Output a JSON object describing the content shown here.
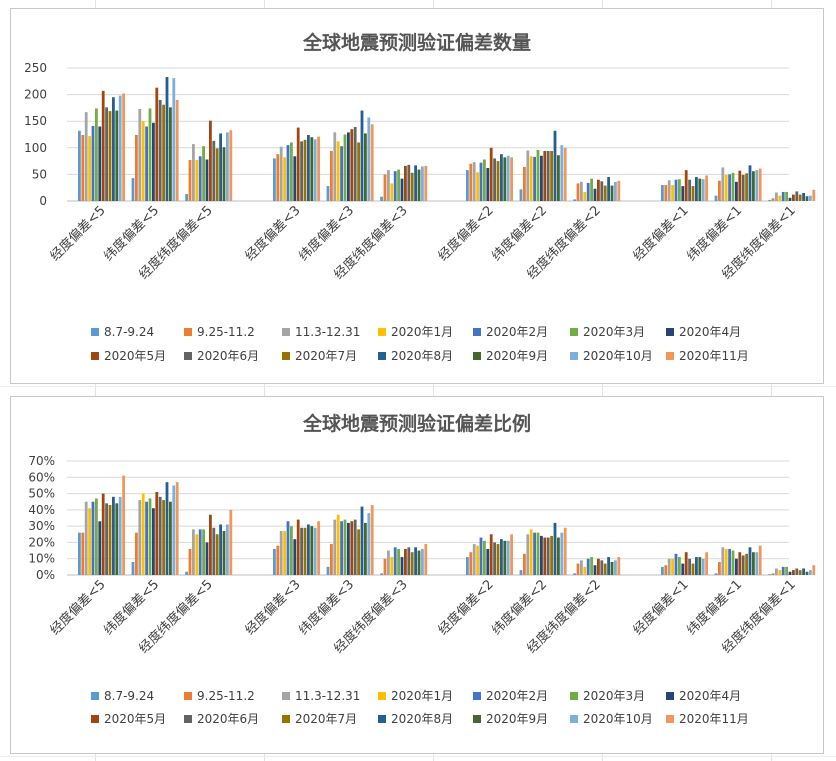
{
  "palette": [
    "#5B9BD5",
    "#ED7D31",
    "#A5A5A5",
    "#FFC000",
    "#4472C4",
    "#70AD47",
    "#264478",
    "#9E480E",
    "#636363",
    "#997300",
    "#255E91",
    "#43682B",
    "#7CAFDD",
    "#F1975A"
  ],
  "chart_data": [
    {
      "type": "bar",
      "title": "全球地震预测验证偏差数量",
      "categories": [
        "经度偏差<5",
        "纬度偏差<5",
        "经度纬度偏差<5",
        "经度偏差<3",
        "纬度偏差<3",
        "经度纬度偏差<3",
        "经度偏差<2",
        "纬度偏差<2",
        "经度纬度偏差<2",
        "经度偏差<1",
        "纬度偏差<1",
        "经度纬度偏差<1"
      ],
      "ylim": [
        0,
        250
      ],
      "yticks": [
        "0",
        "50",
        "100",
        "150",
        "200",
        "250"
      ],
      "yticks_values": [
        0,
        50,
        100,
        150,
        200,
        250
      ],
      "grid": true,
      "legend_position": "bottom",
      "series": [
        {
          "name": "8.7-9.24",
          "values": [
            132,
            43,
            13,
            80,
            28,
            8,
            58,
            22,
            3,
            30,
            10,
            2
          ]
        },
        {
          "name": "9.25-11.2",
          "values": [
            124,
            124,
            77,
            88,
            94,
            50,
            70,
            64,
            33,
            30,
            38,
            5
          ]
        },
        {
          "name": "11.3-12.31",
          "values": [
            167,
            173,
            107,
            102,
            129,
            58,
            73,
            95,
            36,
            39,
            63,
            16
          ]
        },
        {
          "name": "2020年1月",
          "values": [
            122,
            150,
            77,
            82,
            112,
            33,
            54,
            84,
            17,
            30,
            49,
            10
          ]
        },
        {
          "name": "2020年2月",
          "values": [
            141,
            140,
            84,
            105,
            103,
            56,
            72,
            83,
            34,
            40,
            50,
            17
          ]
        },
        {
          "name": "2020年3月",
          "values": [
            174,
            174,
            103,
            110,
            125,
            59,
            78,
            96,
            42,
            41,
            53,
            17
          ]
        },
        {
          "name": "2020年4月",
          "values": [
            140,
            147,
            78,
            84,
            129,
            42,
            62,
            85,
            23,
            28,
            36,
            6
          ]
        },
        {
          "name": "2020年5月",
          "values": [
            207,
            213,
            151,
            138,
            135,
            66,
            100,
            94,
            40,
            58,
            57,
            12
          ]
        },
        {
          "name": "2020年6月",
          "values": [
            176,
            190,
            113,
            112,
            139,
            68,
            80,
            94,
            37,
            40,
            49,
            18
          ]
        },
        {
          "name": "2020年7月",
          "values": [
            169,
            181,
            99,
            115,
            110,
            53,
            75,
            94,
            29,
            28,
            52,
            12
          ]
        },
        {
          "name": "2020年8月",
          "values": [
            195,
            233,
            127,
            124,
            170,
            67,
            88,
            132,
            45,
            45,
            67,
            15
          ]
        },
        {
          "name": "2020年9月",
          "values": [
            170,
            176,
            101,
            120,
            127,
            59,
            82,
            86,
            29,
            42,
            56,
            9
          ]
        },
        {
          "name": "2020年10月",
          "values": [
            198,
            231,
            129,
            116,
            157,
            65,
            85,
            105,
            36,
            41,
            58,
            10
          ]
        },
        {
          "name": "2020年11月",
          "values": [
            202,
            190,
            133,
            121,
            144,
            66,
            82,
            100,
            38,
            48,
            61,
            21
          ]
        }
      ]
    },
    {
      "type": "bar",
      "title": "全球地震预测验证偏差比例",
      "categories": [
        "经度偏差<5",
        "纬度偏差<5",
        "经度纬度偏差<5",
        "经度偏差<3",
        "纬度偏差<3",
        "经度纬度偏差<3",
        "经度偏差<2",
        "纬度偏差<2",
        "经度纬度偏差<2",
        "经度偏差<1",
        "纬度偏差<1",
        "经度纬度偏差<1"
      ],
      "ylim": [
        0,
        70
      ],
      "yticks": [
        "0%",
        "10%",
        "20%",
        "30%",
        "40%",
        "50%",
        "60%",
        "70%"
      ],
      "yticks_values": [
        0,
        10,
        20,
        30,
        40,
        50,
        60,
        70
      ],
      "unit": "%",
      "grid": true,
      "legend_position": "bottom",
      "series": [
        {
          "name": "8.7-9.24",
          "values": [
            26,
            8,
            2,
            16,
            5,
            1,
            11,
            3,
            1,
            5,
            1,
            0.5
          ]
        },
        {
          "name": "9.25-11.2",
          "values": [
            26,
            26,
            16,
            18,
            19,
            10,
            14,
            13,
            7,
            6,
            8,
            1
          ]
        },
        {
          "name": "11.3-12.31",
          "values": [
            45,
            46,
            28,
            27,
            34,
            15,
            19,
            25,
            9,
            10,
            17,
            4
          ]
        },
        {
          "name": "2020年1月",
          "values": [
            41,
            50,
            25,
            27,
            37,
            11,
            18,
            28,
            5,
            10,
            16,
            3
          ]
        },
        {
          "name": "2020年2月",
          "values": [
            45,
            45,
            28,
            33,
            33,
            17,
            23,
            26,
            10,
            13,
            16,
            5
          ]
        },
        {
          "name": "2020年3月",
          "values": [
            47,
            47,
            28,
            30,
            34,
            16,
            21,
            26,
            11,
            11,
            15,
            5
          ]
        },
        {
          "name": "2020年4月",
          "values": [
            33,
            41,
            20,
            22,
            32,
            11,
            16,
            24,
            6,
            7,
            10,
            2
          ]
        },
        {
          "name": "2020年5月",
          "values": [
            50,
            51,
            37,
            34,
            33,
            16,
            25,
            23,
            10,
            14,
            14,
            3
          ]
        },
        {
          "name": "2020年6月",
          "values": [
            44,
            48,
            29,
            29,
            34,
            17,
            20,
            23,
            9,
            10,
            12,
            4
          ]
        },
        {
          "name": "2020年7月",
          "values": [
            43,
            46,
            25,
            29,
            28,
            14,
            19,
            24,
            7,
            7,
            13,
            3
          ]
        },
        {
          "name": "2020年8月",
          "values": [
            48,
            57,
            31,
            31,
            42,
            17,
            22,
            32,
            11,
            11,
            17,
            4
          ]
        },
        {
          "name": "2020年9月",
          "values": [
            44,
            45,
            27,
            30,
            32,
            15,
            21,
            23,
            8,
            11,
            14,
            2
          ]
        },
        {
          "name": "2020年10月",
          "values": [
            48,
            55,
            31,
            29,
            38,
            16,
            21,
            26,
            9,
            10,
            14,
            3
          ]
        },
        {
          "name": "2020年11月",
          "values": [
            61,
            57,
            40,
            33,
            43,
            19,
            25,
            29,
            11,
            14,
            18,
            6
          ]
        }
      ]
    }
  ]
}
